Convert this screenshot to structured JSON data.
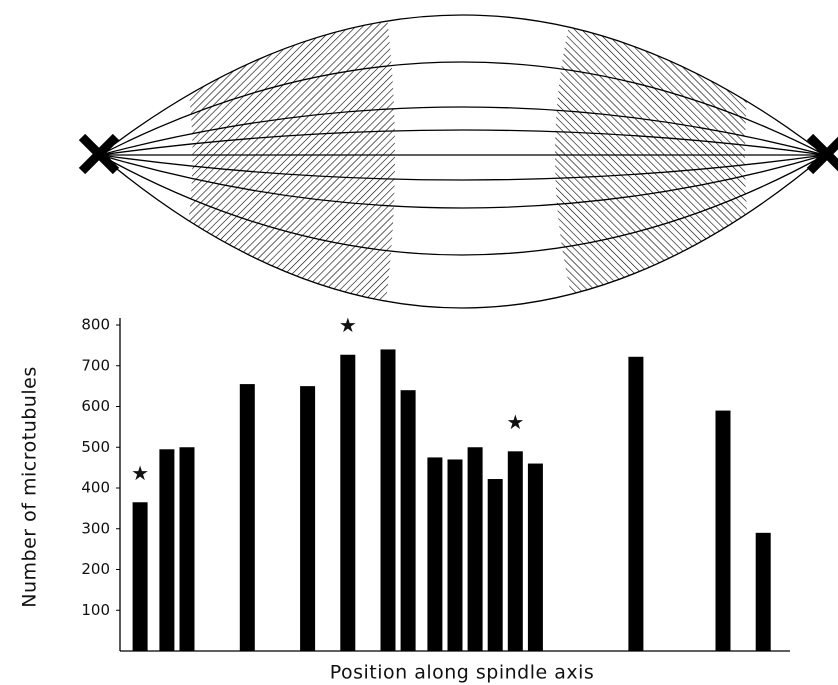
{
  "chart_data": {
    "type": "bar",
    "x_label": "Position along spindle axis",
    "y_label": "Number of microtubules",
    "x": [
      3,
      7,
      10,
      19,
      28,
      34,
      40,
      43,
      47,
      50,
      53,
      56,
      59,
      62,
      77,
      90,
      96
    ],
    "values": [
      365,
      495,
      500,
      655,
      650,
      727,
      740,
      640,
      475,
      470,
      500,
      422,
      490,
      460,
      722,
      590,
      290
    ],
    "annotations": [
      "★",
      null,
      null,
      null,
      null,
      "★",
      null,
      null,
      null,
      null,
      null,
      null,
      "★",
      null,
      null,
      null,
      null
    ],
    "color": "#000000",
    "xlim": [
      0,
      100
    ],
    "ylim": [
      0,
      800
    ],
    "yticks": [
      100,
      200,
      300,
      400,
      500,
      600,
      700,
      800
    ],
    "grid": false
  }
}
